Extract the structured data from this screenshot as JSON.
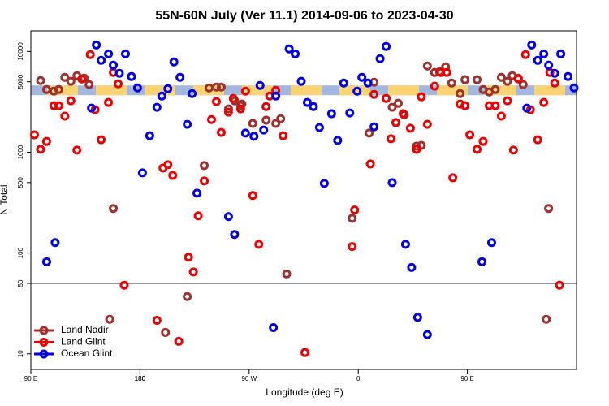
{
  "chart_data": {
    "type": "scatter",
    "title": "55N-60N July (Ver 11.1)   2014-09-06 to 2023-04-30",
    "xlabel": "Longitude (deg E)",
    "ylabel": "N Total",
    "xlim": [
      90,
      540
    ],
    "ylim": [
      7,
      16000
    ],
    "ylog": true,
    "xticks": [
      {
        "value": 90,
        "label": "90 E"
      },
      180,
      {
        "value": 270,
        "label": "90 W"
      },
      {
        "value": 360,
        "label": "0"
      },
      {
        "value": 450,
        "label": "90 E"
      },
      180.0001
    ],
    "yticks": [
      10,
      50,
      100,
      500,
      1000,
      5000,
      10000
    ],
    "hline": 50,
    "band": {
      "from": 3680,
      "to": 4600,
      "colors": [
        "#a3b8e0",
        "#fcd472"
      ]
    },
    "legend": "bottomleft",
    "series": [
      {
        "name": "Land Nadir",
        "color": "#a0302c",
        "x": [
          98,
          103,
          109,
          113,
          118,
          123,
          128,
          134,
          138,
          155,
          158,
          201,
          219,
          233,
          237,
          243,
          247,
          253,
          258,
          263,
          264,
          273,
          284,
          292,
          296,
          301,
          355,
          369,
          373,
          388,
          393,
          398,
          408,
          412,
          417,
          423,
          427,
          432,
          437,
          444,
          448,
          458,
          463,
          468,
          473,
          478,
          483,
          487,
          492,
          496,
          515,
          517
        ],
        "values": [
          5140,
          4190,
          4040,
          4190,
          5530,
          5050,
          5740,
          5430,
          4690,
          22,
          277,
          16.3,
          37,
          737,
          4350,
          4430,
          4430,
          2690,
          3240,
          2900,
          3010,
          1930,
          2080,
          1930,
          2150,
          62,
          221,
          1550,
          4950,
          2790,
          3060,
          2360,
          1150,
          1170,
          7170,
          6180,
          6300,
          7040,
          4860,
          3820,
          5240,
          5240,
          4190,
          3960,
          4190,
          5530,
          5050,
          5740,
          5430,
          4690,
          22,
          277
        ]
      },
      {
        "name": "Land Glint",
        "color": "#ee0000",
        "x": [
          93,
          98,
          103,
          109,
          113,
          118,
          123,
          128,
          132,
          139,
          143,
          148,
          154,
          158,
          162,
          167,
          194,
          199,
          203,
          207,
          212,
          220,
          224,
          228,
          233,
          239,
          243,
          247,
          253,
          257,
          263,
          267,
          273,
          278,
          284,
          287,
          292,
          298,
          316,
          355,
          357,
          370,
          373,
          383,
          387,
          391,
          397,
          403,
          408,
          412,
          417,
          423,
          428,
          433,
          438,
          444,
          448,
          452,
          458,
          463,
          468,
          473,
          478,
          483,
          488,
          492,
          498,
          502,
          508,
          513,
          518,
          522,
          526
        ],
        "values": [
          1490,
          1070,
          1280,
          2900,
          2900,
          2280,
          3240,
          1050,
          5330,
          9300,
          2640,
          1330,
          3120,
          6180,
          4770,
          48,
          21.5,
          697,
          752,
          590,
          13.3,
          91,
          65,
          234,
          519,
          2110,
          3180,
          1570,
          2500,
          3420,
          2690,
          4040,
          372,
          122,
          2840,
          3610,
          4110,
          1460,
          10.3,
          116,
          267,
          765,
          3750,
          3420,
          1360,
          1970,
          2410,
          1730,
          1070,
          3550,
          1890,
          4520,
          6180,
          6180,
          558,
          3010,
          2900,
          1490,
          1070,
          1280,
          2900,
          2900,
          2280,
          3240,
          1050,
          5330,
          9300,
          2640,
          1330,
          3120,
          6180,
          4860,
          48
        ]
      },
      {
        "name": "Ocean Glint",
        "color": "#0000ee",
        "x": [
          103,
          110,
          140,
          144,
          148,
          154,
          158,
          163,
          168,
          173,
          178,
          182,
          188,
          194,
          198,
          203,
          208,
          213,
          219,
          223,
          227,
          253,
          258,
          267,
          274,
          279,
          282,
          290,
          292,
          303,
          308,
          313,
          318,
          323,
          328,
          332,
          338,
          343,
          348,
          353,
          359,
          363,
          368,
          373,
          378,
          383,
          388,
          399,
          404,
          409,
          417,
          462,
          470,
          499,
          503,
          508,
          513,
          517,
          522,
          527,
          533,
          538
        ],
        "values": [
          82,
          127,
          2740,
          11600,
          8160,
          9450,
          7300,
          6070,
          9450,
          5640,
          4350,
          624,
          1460,
          2790,
          3610,
          4270,
          7870,
          5530,
          1890,
          3820,
          393,
          230,
          153,
          1550,
          1440,
          4600,
          1660,
          18.2,
          3610,
          10600,
          9450,
          5050,
          3120,
          2840,
          1760,
          491,
          2410,
          1310,
          4860,
          2450,
          4040,
          5530,
          4860,
          1790,
          8470,
          11200,
          500,
          122,
          72,
          23,
          15.5,
          82,
          127,
          2740,
          11600,
          8160,
          9450,
          7300,
          6070,
          9450,
          5640,
          4350
        ]
      }
    ]
  }
}
